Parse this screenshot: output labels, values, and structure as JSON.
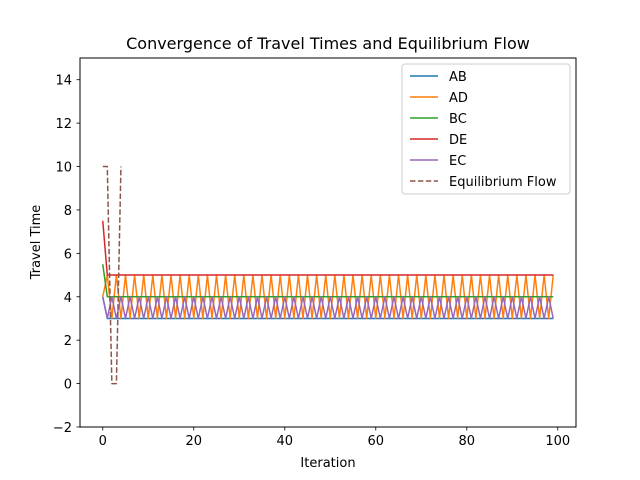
{
  "chart_data": {
    "type": "line",
    "title": "Convergence of Travel Times and Equilibrium Flow",
    "xlabel": "Iteration",
    "ylabel": "Travel Time",
    "xlim": [
      -5,
      104
    ],
    "ylim": [
      -2,
      15
    ],
    "xticks": [
      0,
      20,
      40,
      60,
      80,
      100
    ],
    "yticks": [
      -2,
      0,
      2,
      4,
      6,
      8,
      10,
      12,
      14
    ],
    "grid": false,
    "legend_position": "upper right",
    "series": [
      {
        "name": "AB",
        "color": "#1f77b4",
        "dash": false,
        "pattern": {
          "start": 4.0,
          "values": [
            3.0
          ],
          "from": 1,
          "to": 99
        }
      },
      {
        "name": "AD",
        "color": "#ff7f0e",
        "dash": false,
        "pattern": {
          "start": 4.0,
          "values": [
            5.0,
            3.0
          ],
          "from": 1,
          "to": 99
        }
      },
      {
        "name": "BC",
        "color": "#2ca02c",
        "dash": false,
        "pattern": {
          "start": 5.5,
          "values": [
            4.0
          ],
          "from": 1,
          "to": 99
        }
      },
      {
        "name": "DE",
        "color": "#d62728",
        "dash": false,
        "pattern": {
          "start": 7.5,
          "values": [
            5.0
          ],
          "from": 1,
          "to": 99
        }
      },
      {
        "name": "EC",
        "color": "#9467bd",
        "dash": false,
        "pattern": {
          "start": 4.0,
          "values": [
            3.0,
            4.0
          ],
          "from": 1,
          "to": 99
        }
      },
      {
        "name": "Equilibrium Flow",
        "color": "#8c564b",
        "dash": true,
        "x": [
          0,
          1,
          2,
          3,
          4
        ],
        "y": [
          10,
          10,
          0,
          0,
          10
        ]
      }
    ]
  }
}
